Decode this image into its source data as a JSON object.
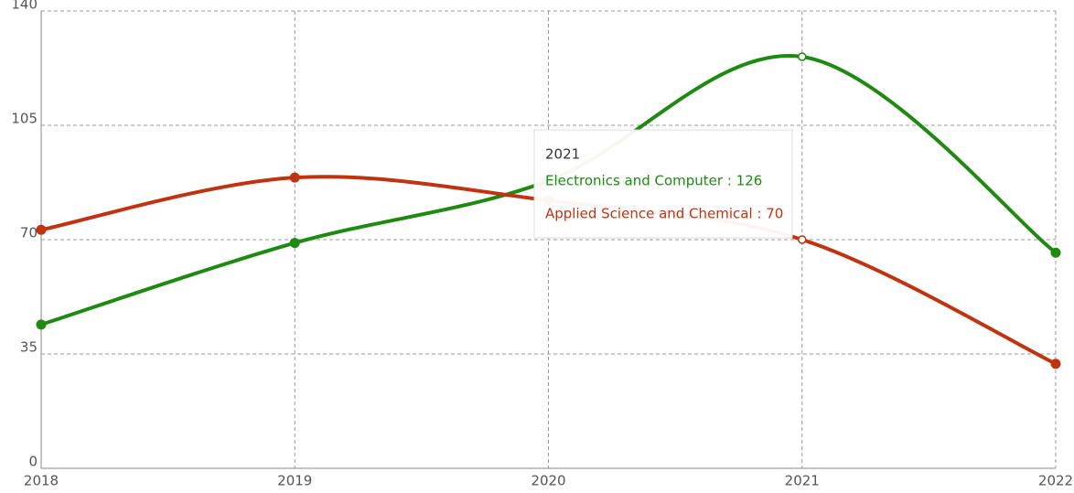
{
  "chart_data": {
    "type": "line",
    "x": [
      2018,
      2019,
      2020,
      2021,
      2022
    ],
    "series": [
      {
        "name": "Electronics and Computer",
        "color": "#1e8a12",
        "values": [
          44,
          69,
          88,
          126,
          66
        ]
      },
      {
        "name": "Applied Science and Chemical",
        "color": "#bf3311",
        "values": [
          73,
          89,
          82,
          70,
          32
        ]
      }
    ],
    "xlim": [
      2018,
      2022
    ],
    "xticks": [
      2018,
      2019,
      2020,
      2021,
      2022
    ],
    "ylim": [
      0,
      140
    ],
    "yticks": [
      0,
      35,
      70,
      105,
      140
    ],
    "grid": true,
    "tooltip": {
      "title": "2021",
      "items": [
        "Electronics and Computer : 126",
        "Applied Science and Chemical : 70"
      ]
    }
  }
}
